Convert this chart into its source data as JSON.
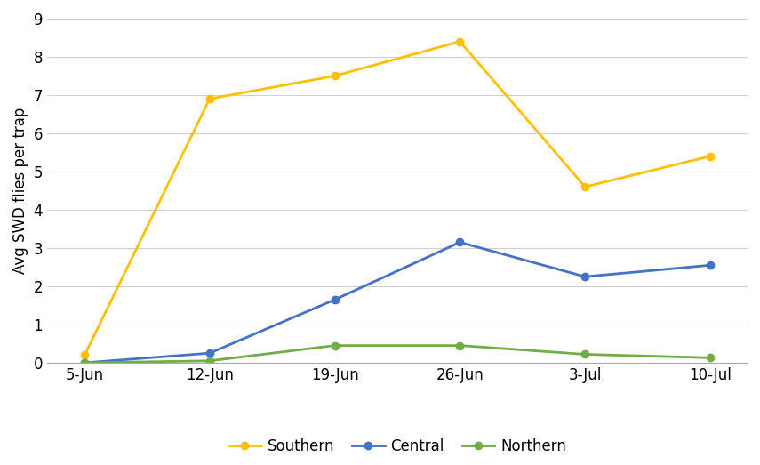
{
  "x_labels": [
    "5-Jun",
    "12-Jun",
    "19-Jun",
    "26-Jun",
    "3-Jul",
    "10-Jul"
  ],
  "southern": [
    0.2,
    6.9,
    7.5,
    8.4,
    4.6,
    5.4
  ],
  "central": [
    0.0,
    0.25,
    1.65,
    3.15,
    2.25,
    2.55
  ],
  "northern": [
    0.0,
    0.05,
    0.45,
    0.45,
    0.22,
    0.13
  ],
  "southern_color": "#FFC000",
  "central_color": "#4472C4",
  "northern_color": "#70AD47",
  "ylabel": "Avg SWD flies per trap",
  "ylim": [
    0,
    9
  ],
  "yticks": [
    0,
    1,
    2,
    3,
    4,
    5,
    6,
    7,
    8,
    9
  ],
  "legend_labels": [
    "Southern",
    "Central",
    "Northern"
  ],
  "marker": "o",
  "linewidth": 2.0,
  "markersize": 6,
  "background_color": "#FFFFFF",
  "grid_color": "#D0D0D0",
  "tick_label_fontsize": 12,
  "ylabel_fontsize": 12
}
